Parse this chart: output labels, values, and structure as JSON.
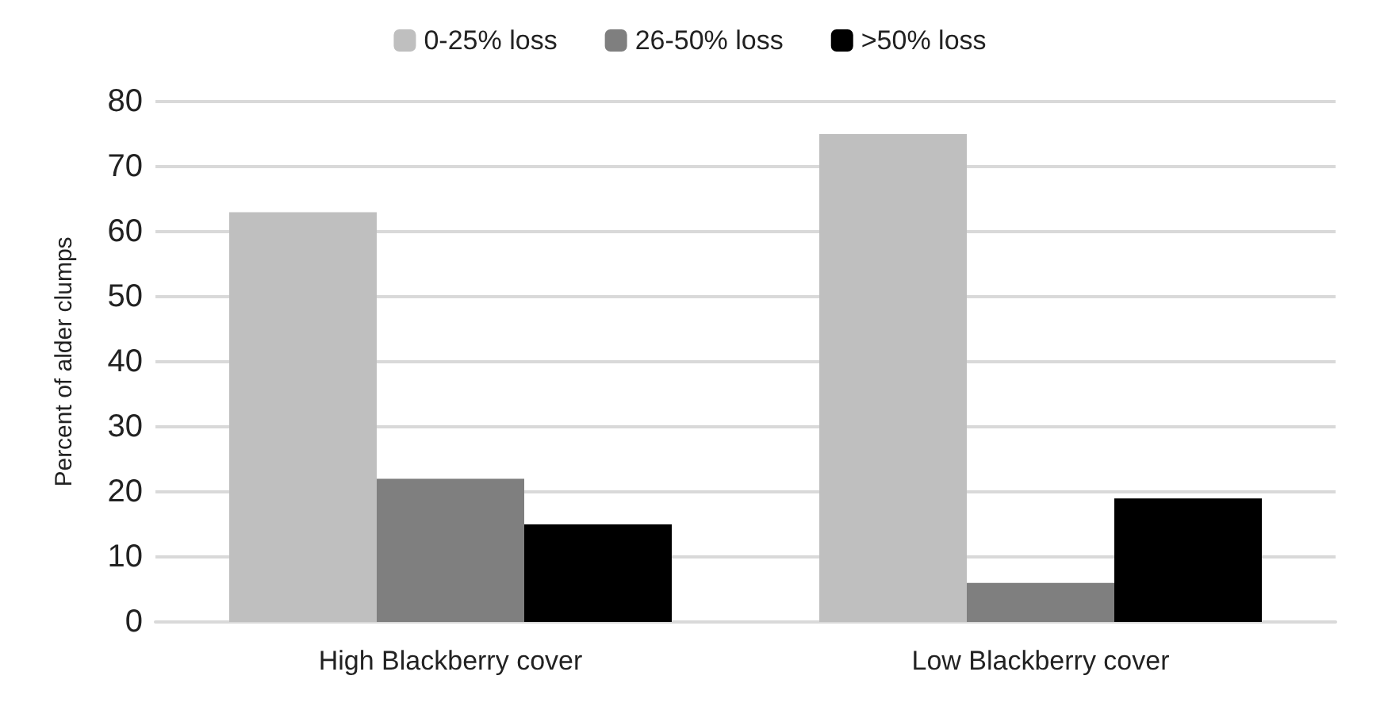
{
  "chart_data": {
    "type": "bar",
    "ylabel": "Percent of alder clumps",
    "categories": [
      "High Blackberry cover",
      "Low Blackberry cover"
    ],
    "series": [
      {
        "name": "0-25% loss",
        "color": "#bfbfbf",
        "values": [
          63,
          75
        ]
      },
      {
        "name": "26-50% loss",
        "color": "#7f7f7f",
        "values": [
          22,
          6
        ]
      },
      {
        "name": ">50% loss",
        "color": "#000000",
        "values": [
          15,
          19
        ]
      }
    ],
    "ylim": [
      0,
      80
    ],
    "yticks": [
      0,
      10,
      20,
      30,
      40,
      50,
      60,
      70,
      80
    ],
    "grid": "y",
    "legend": "top"
  }
}
